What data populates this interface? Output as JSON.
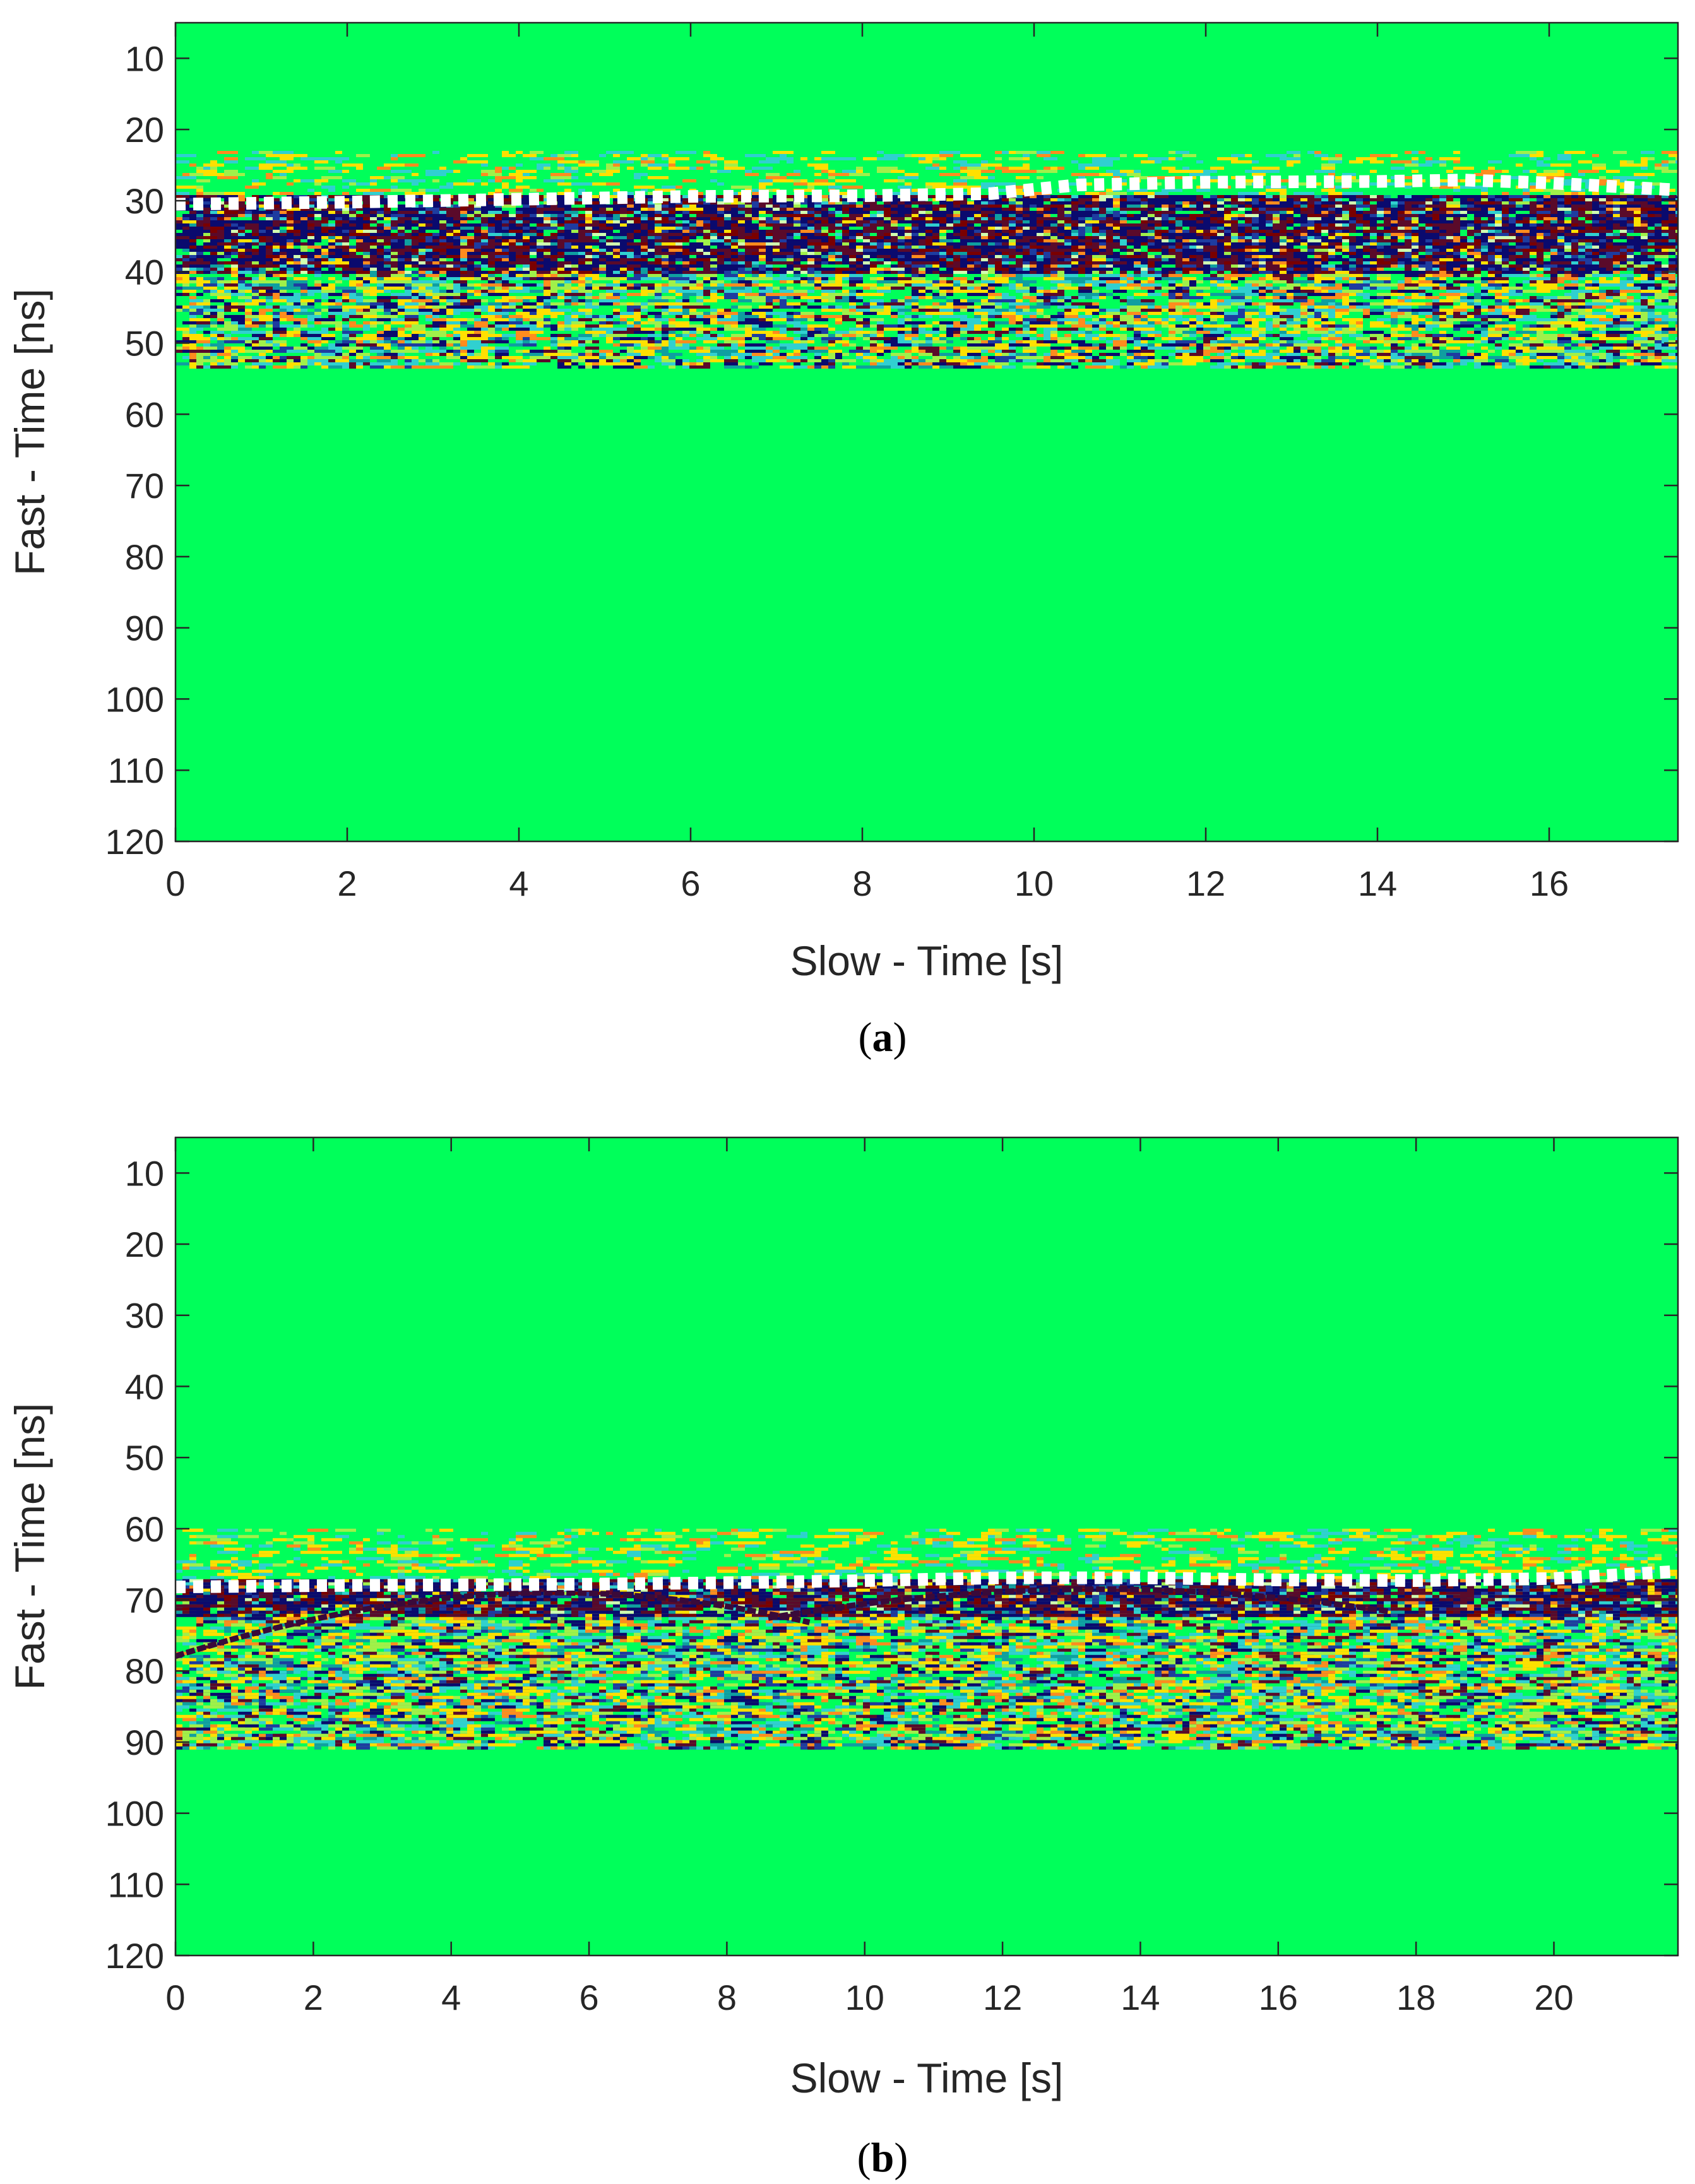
{
  "colors": {
    "background_field": "#00ff5a",
    "noise": [
      "#0a0a6e",
      "#5a0a2a",
      "#7a0000",
      "#1e3ca0",
      "#0f9fa0",
      "#30d0d0",
      "#ffe000",
      "#ff8c1e",
      "#a0f04a",
      "#d0ffb0"
    ],
    "surface_marker": "#ffffff",
    "axis": "#262626"
  },
  "chart_data": [
    {
      "type": "heatmap",
      "panel_label": "a",
      "xlabel": "Slow - Time [s]",
      "ylabel": "Fast - Time [ns]",
      "xlim": [
        0,
        17.5
      ],
      "ylim": [
        5,
        120
      ],
      "y_reversed": true,
      "xticks": [
        "0",
        "2",
        "4",
        "6",
        "8",
        "10",
        "12",
        "14",
        "16"
      ],
      "yticks": [
        "10",
        "20",
        "30",
        "40",
        "50",
        "60",
        "70",
        "80",
        "90",
        "100",
        "110",
        "120"
      ],
      "noise_band": {
        "top_ns": 23,
        "bottom_ns": 53.5,
        "dense_top_ns": 29,
        "dense_bottom_ns": 40
      },
      "surface_line": {
        "x": [
          0,
          2,
          4,
          6,
          8,
          9.5,
          10.5,
          12,
          14,
          15,
          16,
          17.5
        ],
        "y": [
          30.5,
          30.2,
          29.8,
          29.4,
          29.3,
          29.0,
          27.8,
          27.4,
          27.3,
          27.1,
          27.5,
          28.5
        ]
      },
      "hyperbolas": []
    },
    {
      "type": "heatmap",
      "panel_label": "b",
      "xlabel": "Slow - Time [s]",
      "ylabel": "Fast - Time [ns]",
      "xlim": [
        0,
        21.8
      ],
      "ylim": [
        5,
        120
      ],
      "y_reversed": true,
      "xticks": [
        "0",
        "2",
        "4",
        "6",
        "8",
        "10",
        "12",
        "14",
        "16",
        "18",
        "20"
      ],
      "yticks": [
        "10",
        "20",
        "30",
        "40",
        "50",
        "60",
        "70",
        "80",
        "90",
        "100",
        "110",
        "120"
      ],
      "noise_band": {
        "top_ns": 60,
        "bottom_ns": 91,
        "dense_top_ns": 67,
        "dense_bottom_ns": 72
      },
      "surface_line": {
        "x": [
          0,
          2,
          4,
          6,
          8,
          10,
          12,
          14,
          16,
          18,
          20,
          21.8
        ],
        "y": [
          68.2,
          68.0,
          67.9,
          67.8,
          67.6,
          67.3,
          66.9,
          66.9,
          67.2,
          67.3,
          67.0,
          66.0
        ]
      },
      "hyperbolas": [
        {
          "apex_x": 5.5,
          "apex_y": 69,
          "x_range": [
            0,
            9.2
          ],
          "k": 0.95
        },
        {
          "apex_x": 13.4,
          "apex_y": 68.5,
          "x_range": [
            8.6,
            17.6
          ],
          "k": 0.72
        }
      ]
    }
  ]
}
